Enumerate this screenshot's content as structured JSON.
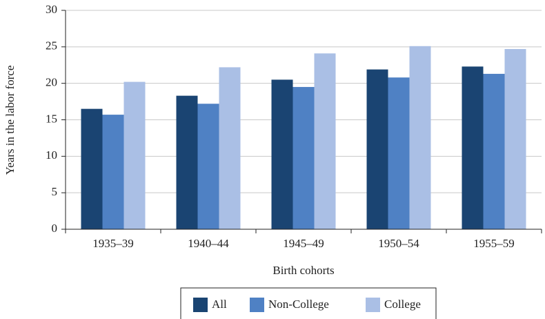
{
  "chart_data": {
    "type": "bar",
    "x_label": "Birth cohorts",
    "y_label": "Years in the labor force",
    "categories": [
      "1935–39",
      "1940–44",
      "1945–49",
      "1950–54",
      "1955–59"
    ],
    "series": [
      {
        "name": "All",
        "color": "#1a4472",
        "values": [
          16.5,
          18.3,
          20.5,
          21.9,
          22.3
        ]
      },
      {
        "name": "Non-College",
        "color": "#4f81c4",
        "values": [
          15.7,
          17.2,
          19.5,
          20.8,
          21.3
        ]
      },
      {
        "name": "College",
        "color": "#aabfe5",
        "values": [
          20.2,
          22.2,
          24.1,
          25.1,
          24.7
        ]
      }
    ],
    "ylim": [
      0,
      30
    ],
    "yticks": [
      0,
      5,
      10,
      15,
      20,
      25,
      30
    ],
    "grid": true
  }
}
